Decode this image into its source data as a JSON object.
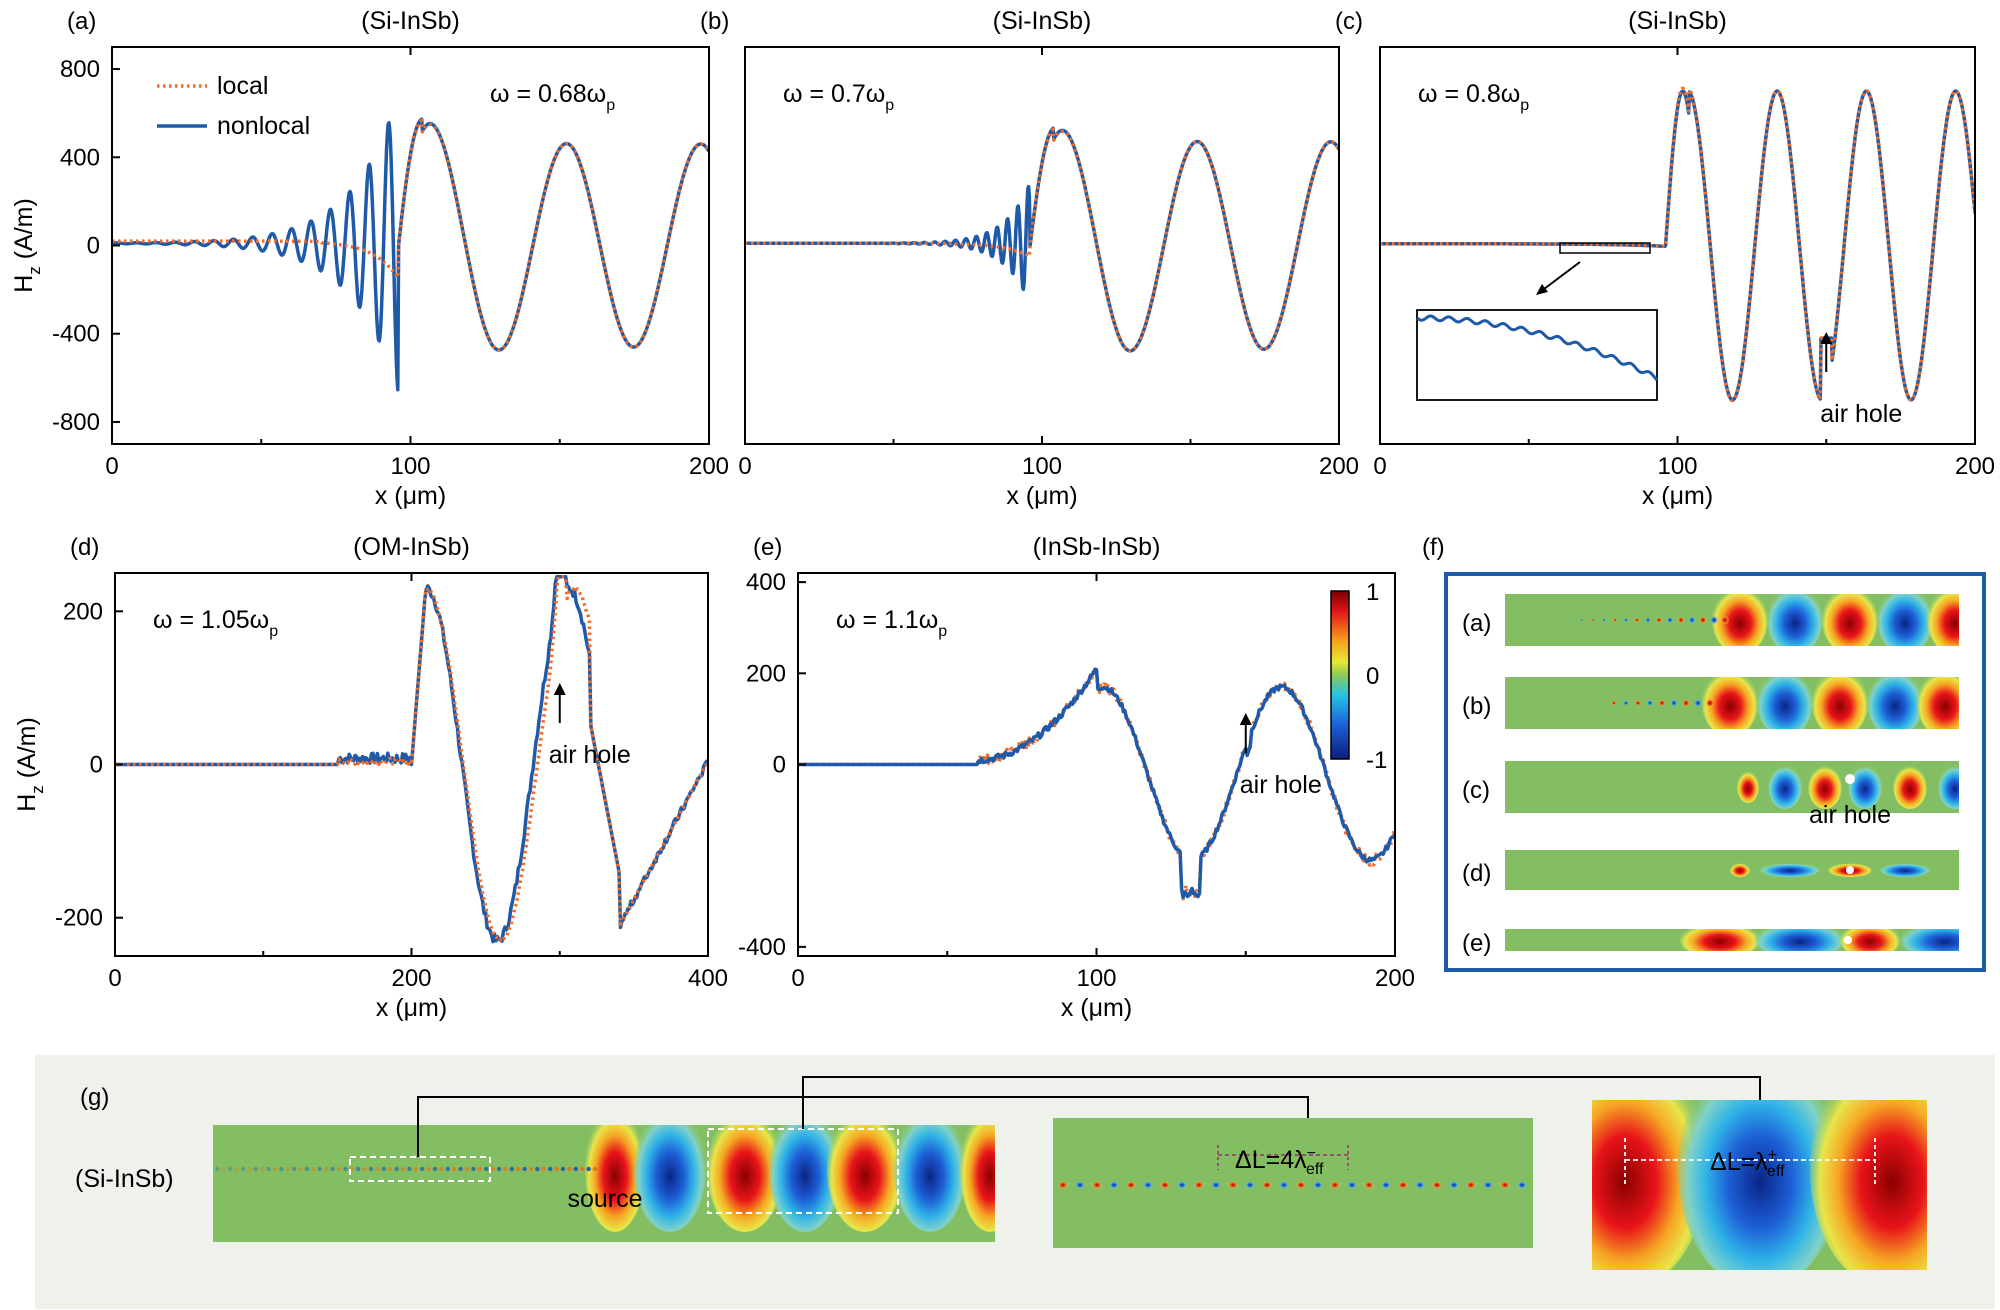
{
  "colors": {
    "local": "#f26b2a",
    "nonlocal": "#1f5aa8",
    "frame_f": "#1f5aa8",
    "panel_g_bg": "#eef2ea"
  },
  "chart_data": [
    {
      "id": "a",
      "type": "line",
      "letter": "(a)",
      "title": "(Si-InSb)",
      "omega_label": "ω = 0.68ω",
      "omega_sub": "p",
      "xlabel": "x (μm)",
      "ylabel": "H",
      "ylabel_sub": "z",
      "ylabel_unit": " (A/m)",
      "xlim": [
        0,
        200
      ],
      "ylim": [
        -900,
        900
      ],
      "xticks": [
        0,
        100,
        200
      ],
      "xtick_labels": [
        "0",
        "100",
        "200"
      ],
      "yticks": [
        800,
        400,
        0,
        -400,
        -800
      ],
      "ytick_labels": [
        "800",
        "400",
        "0",
        "-400",
        "-800"
      ],
      "legend": [
        {
          "name": "local",
          "style": "dotted"
        },
        {
          "name": "nonlocal",
          "style": "solid"
        }
      ],
      "source_x": 100,
      "series": [
        {
          "name": "local",
          "left": {
            "type": "decay",
            "amp": 170,
            "k": 0.12,
            "base": 20
          },
          "right": {
            "amp": 460,
            "period": 45,
            "start": 96,
            "peak": 680
          }
        },
        {
          "name": "nonlocal",
          "left": {
            "type": "osc",
            "amp": 680,
            "period": 6.5,
            "k": 0.065,
            "base": 10
          },
          "right": {
            "amp": 460,
            "period": 45,
            "start": 96,
            "peak": 690
          }
        }
      ]
    },
    {
      "id": "b",
      "type": "line",
      "letter": "(b)",
      "title": "(Si-InSb)",
      "omega_label": "ω = 0.7ω",
      "omega_sub": "p",
      "xlabel": "x (μm)",
      "xlim": [
        0,
        200
      ],
      "ylim": [
        -900,
        900
      ],
      "xticks": [
        0,
        100,
        200
      ],
      "xtick_labels": [
        "0",
        "100",
        "200"
      ],
      "source_x": 100,
      "series": [
        {
          "name": "local",
          "left": {
            "type": "decay",
            "amp": 60,
            "k": 0.12,
            "base": 10
          },
          "right": {
            "amp": 470,
            "period": 45,
            "start": 96,
            "peak": 590
          }
        },
        {
          "name": "nonlocal",
          "left": {
            "type": "osc",
            "amp": 280,
            "period": 3.5,
            "k": 0.12,
            "base": 10
          },
          "right": {
            "amp": 470,
            "period": 45,
            "start": 96,
            "peak": 600
          }
        }
      ]
    },
    {
      "id": "c",
      "type": "line",
      "letter": "(c)",
      "title": "(Si-InSb)",
      "omega_label": "ω = 0.8ω",
      "omega_sub": "p",
      "xlabel": "x (μm)",
      "xlim": [
        0,
        200
      ],
      "ylim": [
        -900,
        900
      ],
      "xticks": [
        0,
        100,
        200
      ],
      "xtick_labels": [
        "0",
        "100",
        "200"
      ],
      "annotation": "air hole",
      "hole_x": 150,
      "source_x": 100,
      "series": [
        {
          "name": "local",
          "right": {
            "amp": 700,
            "period": 30,
            "start": 96,
            "peak": 720
          }
        },
        {
          "name": "nonlocal",
          "right": {
            "amp": 700,
            "period": 30,
            "start": 96,
            "peak": 700
          }
        }
      ]
    },
    {
      "id": "d",
      "type": "line",
      "letter": "(d)",
      "title": "(OM-InSb)",
      "omega_label": "ω = 1.05ω",
      "omega_sub": "p",
      "xlabel": "x (μm)",
      "ylabel": "H",
      "ylabel_sub": "z",
      "ylabel_unit": " (A/m)",
      "xlim": [
        0,
        400
      ],
      "ylim": [
        -250,
        250
      ],
      "xticks": [
        0,
        200,
        400
      ],
      "xtick_labels": [
        "0",
        "200",
        "400"
      ],
      "yticks": [
        200,
        0,
        -200
      ],
      "ytick_labels": [
        "200",
        "0",
        "-200"
      ],
      "annotation": "air hole",
      "hole_x": 300
    },
    {
      "id": "e",
      "type": "line",
      "letter": "(e)",
      "title": "(InSb-InSb)",
      "omega_label": "ω = 1.1ω",
      "omega_sub": "p",
      "xlabel": "x (μm)",
      "xlim": [
        0,
        200
      ],
      "ylim": [
        -420,
        420
      ],
      "xticks": [
        0,
        100,
        200
      ],
      "xtick_labels": [
        "0",
        "100",
        "200"
      ],
      "yticks": [
        400,
        200,
        0,
        -400
      ],
      "ytick_labels": [
        "400",
        "200",
        "0",
        "-400"
      ],
      "annotation": "air hole",
      "hole_x": 150,
      "colorbar": {
        "ticks": [
          "1",
          "0",
          "-1"
        ],
        "range": [
          -1,
          1
        ]
      }
    },
    {
      "id": "f",
      "type": "heatmap",
      "letter": "(f)",
      "rows": [
        {
          "label": "(a)"
        },
        {
          "label": "(b)"
        },
        {
          "label": "(c)",
          "annotation": "air hole"
        },
        {
          "label": "(d)"
        },
        {
          "label": "(e)"
        }
      ]
    },
    {
      "id": "g",
      "type": "heatmap",
      "letter": "(g)",
      "row_label": "(Si-InSb)",
      "source_label": "source",
      "zoom_left_label": "ΔL=4λ",
      "zoom_left_sup": "−",
      "zoom_left_sub": "eff",
      "zoom_right_label": "ΔL=λ",
      "zoom_right_sup": "+",
      "zoom_right_sub": "eff"
    }
  ]
}
